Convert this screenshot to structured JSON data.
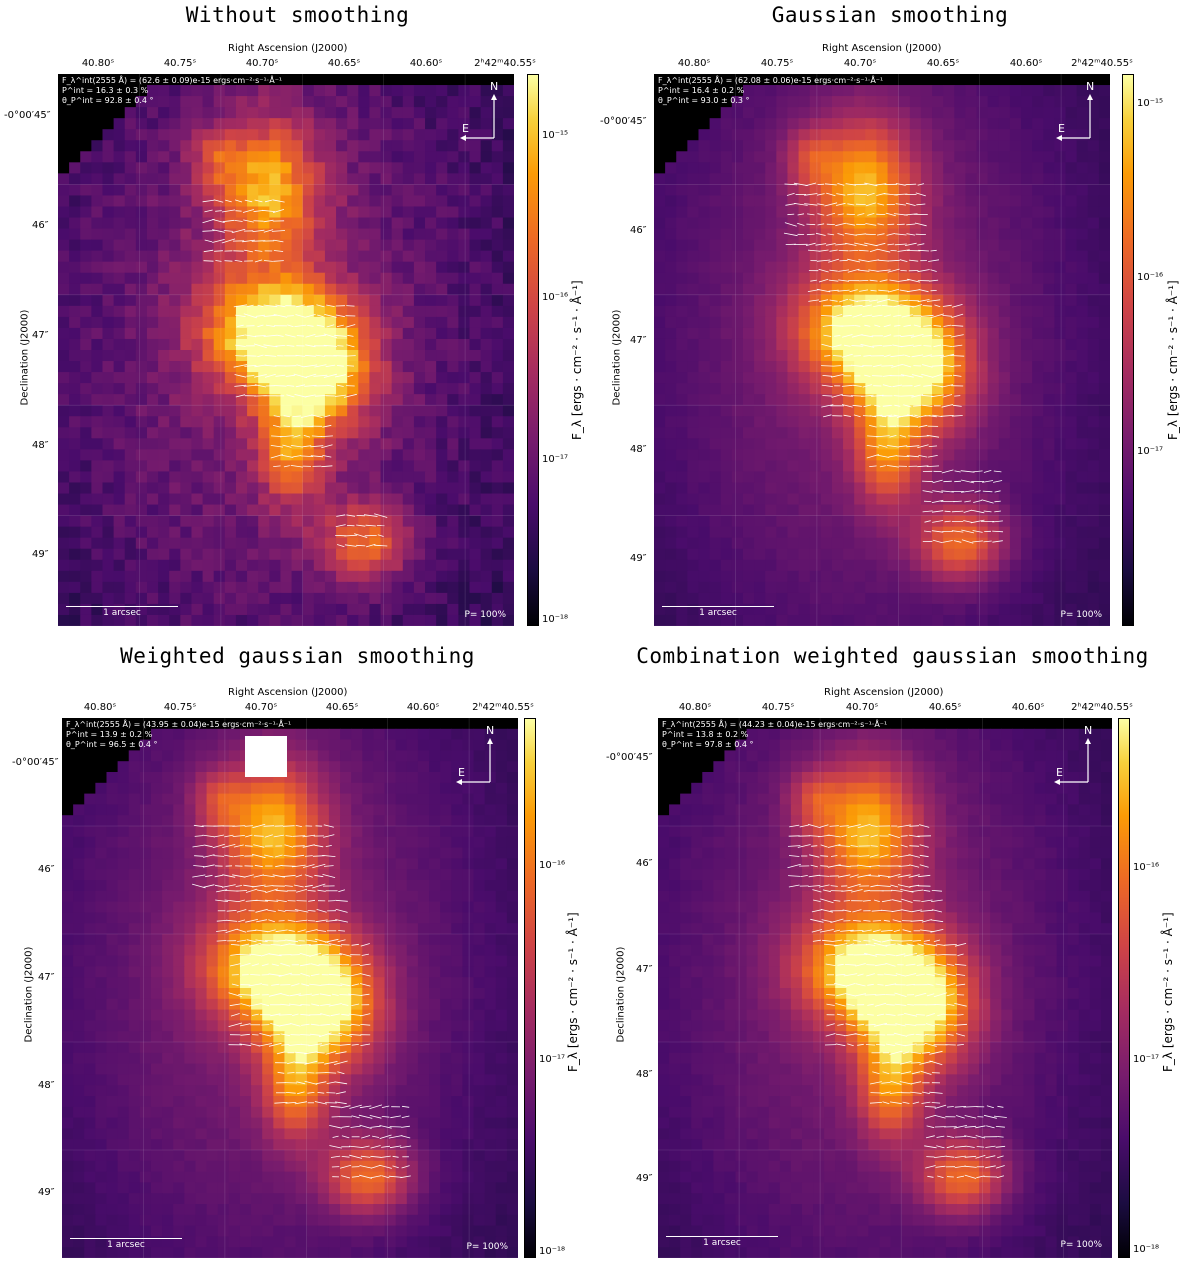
{
  "axes": {
    "ra_label": "Right Ascension (J2000)",
    "dec_label": "Declination (J2000)",
    "ra_ticks": [
      "40.80ˢ",
      "40.75ˢ",
      "40.70ˢ",
      "40.65ˢ",
      "40.60ˢ",
      "2ʰ42ᵐ40.55ˢ"
    ],
    "dec_ticks": [
      "-0°00′45″",
      "46″",
      "47″",
      "48″",
      "49″"
    ],
    "cbar_label": "F_λ [ergs · cm⁻² · s⁻¹ · Å⁻¹]"
  },
  "map_labels": {
    "scale": "1 arcsec",
    "pscale": "P= 100%",
    "north": "N",
    "east": "E"
  },
  "panels": [
    {
      "title": "Without smoothing",
      "flux": "F_λ^int(2555 Å) = (62.6 ± 0.09)e-15 ergs·cm⁻²·s⁻¹·Å⁻¹",
      "pol": "P^int = 16.3 ± 0.3 %",
      "angle": "θ_P^int = 92.8 ± 0.4 °",
      "cbar_ticks": [
        "10⁻¹⁵",
        "10⁻¹⁶",
        "10⁻¹⁷",
        "10⁻¹⁸"
      ]
    },
    {
      "title": "Gaussian smoothing",
      "flux": "F_λ^int(2555 Å) = (62.08 ± 0.06)e-15 ergs·cm⁻²·s⁻¹·Å⁻¹",
      "pol": "P^int = 16.4 ± 0.2 %",
      "angle": "θ_P^int = 93.0 ± 0.3 °",
      "cbar_ticks": [
        "10⁻¹⁵",
        "10⁻¹⁶",
        "10⁻¹⁷"
      ]
    },
    {
      "title": "Weighted gaussian smoothing",
      "flux": "F_λ^int(2555 Å) = (43.95 ± 0.04)e-15 ergs·cm⁻²·s⁻¹·Å⁻¹",
      "pol": "P^int = 13.9 ± 0.2 %",
      "angle": "θ_P^int = 96.5 ± 0.4 °",
      "cbar_ticks": [
        "10⁻¹⁶",
        "10⁻¹⁷",
        "10⁻¹⁸"
      ]
    },
    {
      "title": "Combination weighted gaussian smoothing",
      "flux": "F_λ^int(2555 Å) = (44.23 ± 0.04)e-15 ergs·cm⁻²·s⁻¹·Å⁻¹",
      "pol": "P^int = 13.8 ± 0.2 %",
      "angle": "θ_P^int = 97.8 ± 0.4 °",
      "cbar_ticks": [
        "10⁻¹⁶",
        "10⁻¹⁷",
        "10⁻¹⁸"
      ]
    }
  ],
  "colors": {
    "background_map": "#000004",
    "colormap": "inferno"
  }
}
